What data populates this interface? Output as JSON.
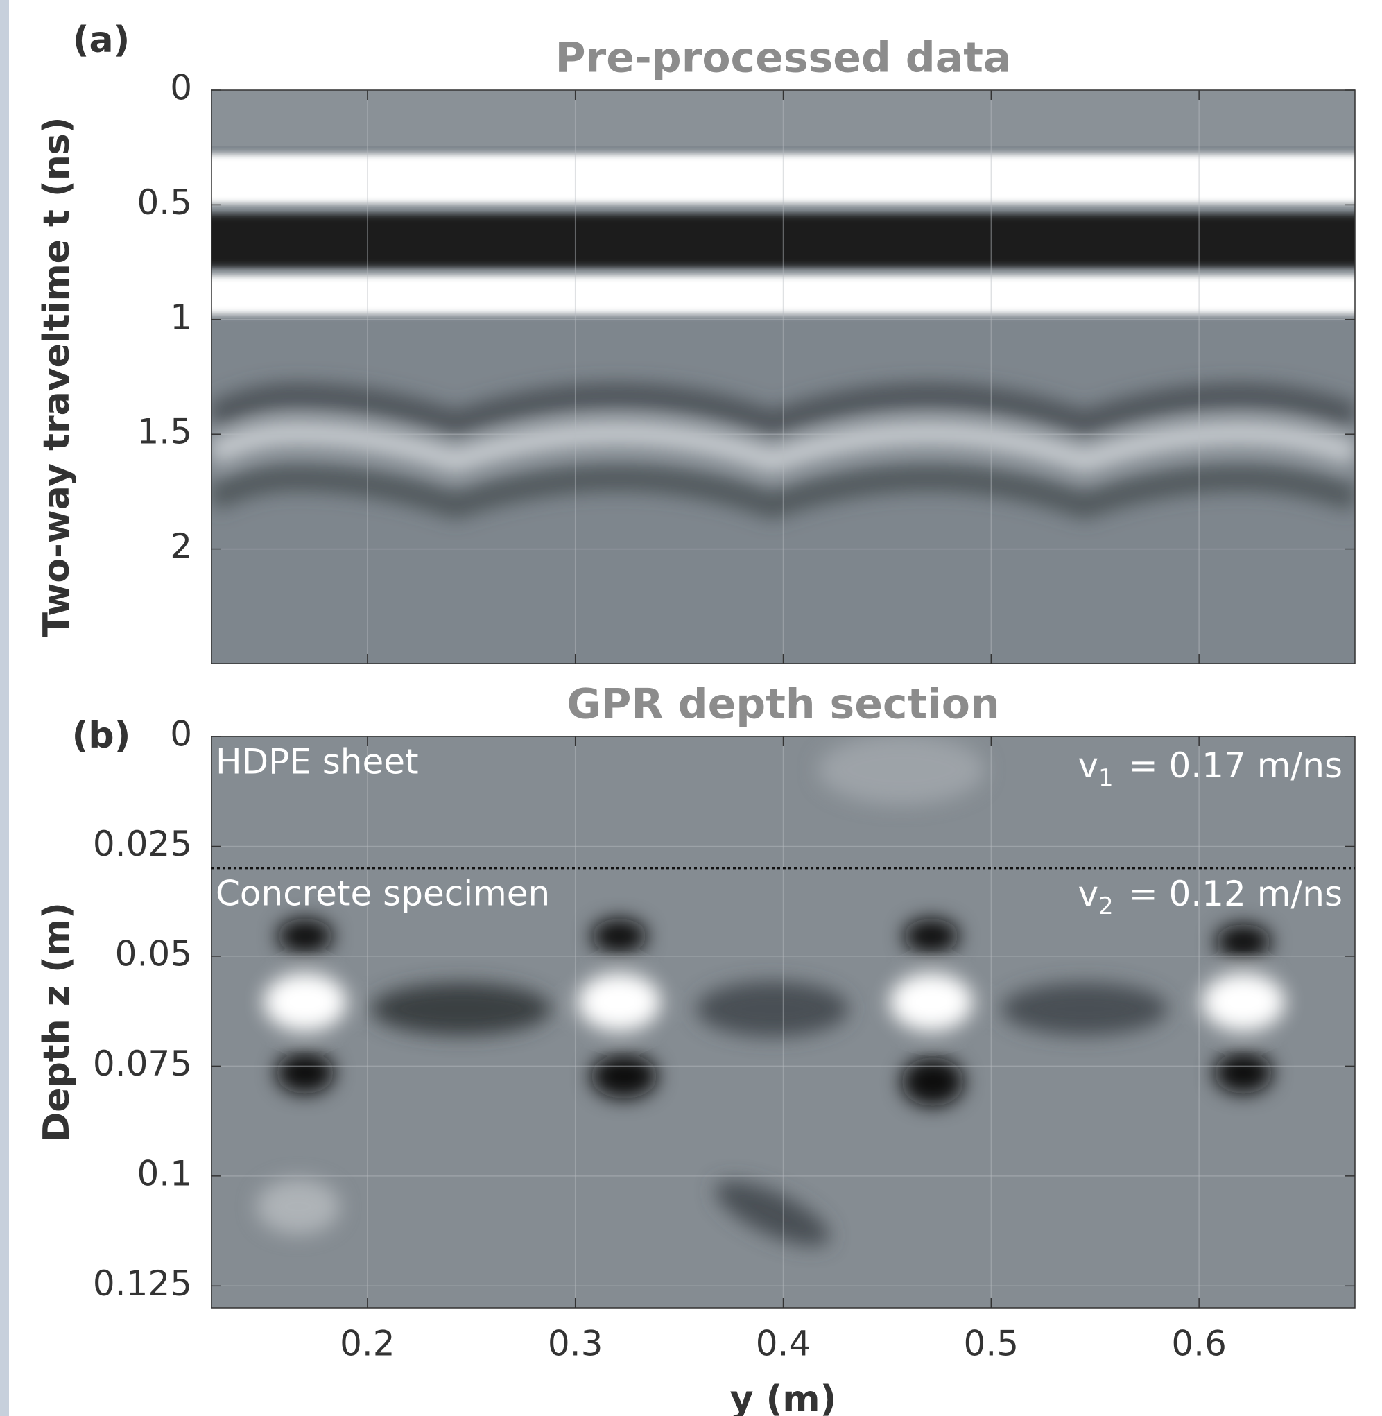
{
  "chart_data": [
    {
      "type": "heatmap",
      "panel_label": "(a)",
      "title": "Pre-processed data",
      "y_label": "Two-way traveltime t (ns)",
      "xlim": [
        0.125,
        0.675
      ],
      "xticks": [
        0.2,
        0.3,
        0.4,
        0.5,
        0.6
      ],
      "show_xtick_labels": false,
      "ylim": [
        0,
        2.5
      ],
      "yticks": [
        0,
        0.5,
        1,
        1.5,
        2
      ],
      "y_reversed": true,
      "colormap": "gray",
      "grid": true
    },
    {
      "type": "heatmap",
      "panel_label": "(b)",
      "title": "GPR depth section",
      "x_label": "y (m)",
      "y_label": "Depth z (m)",
      "xlim": [
        0.125,
        0.675
      ],
      "xticks": [
        0.2,
        0.3,
        0.4,
        0.5,
        0.6
      ],
      "show_xtick_labels": true,
      "ylim": [
        0,
        0.13
      ],
      "yticks": [
        0,
        0.025,
        0.05,
        0.075,
        0.1,
        0.125
      ],
      "y_reversed": true,
      "colormap": "gray",
      "grid": true,
      "annotations": [
        "HDPE sheet",
        "Concrete specimen"
      ],
      "velocities": [
        {
          "symbol": "v",
          "subscript": "1",
          "text": "= 0.17 m/ns"
        },
        {
          "symbol": "v",
          "subscript": "2",
          "text": "= 0.12 m/ns"
        }
      ],
      "interface_depth": 0.03
    }
  ]
}
